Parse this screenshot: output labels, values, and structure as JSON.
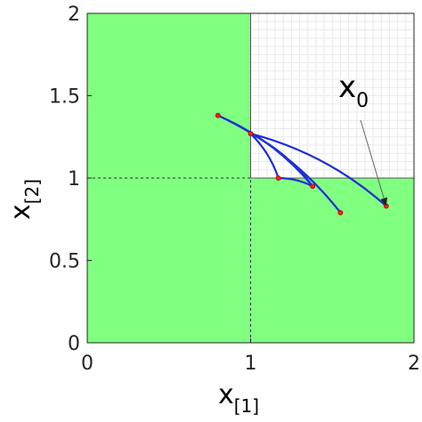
{
  "chart_data": {
    "type": "line",
    "xlim": [
      0,
      2
    ],
    "ylim": [
      0,
      2
    ],
    "xticks": [
      "0",
      "1",
      "2"
    ],
    "yticks": [
      "0",
      "0.5",
      "1",
      "1.5",
      "2"
    ],
    "xlabel": {
      "base": "x",
      "sub": "[1]"
    },
    "ylabel": {
      "base": "x",
      "sub": "[2]"
    },
    "colors": {
      "region": "#80ff80",
      "grid": "#e9e9e9",
      "trajectory": "#1f2fd6",
      "point": "#ff1a1a",
      "reference": "#333333"
    },
    "region_note": "green region = plane minus the quadrant x1>1, x2>1",
    "reference_lines": {
      "x": 1,
      "y": 1
    },
    "annotation": {
      "base": "x",
      "sub": "0",
      "target": [
        1.83,
        0.83
      ]
    },
    "trajectories": [
      {
        "points": [
          [
            1.83,
            0.83
          ],
          [
            1.0,
            1.27
          ],
          [
            1.38,
            0.95
          ],
          [
            0.8,
            1.38
          ],
          [
            1.55,
            0.79
          ]
        ]
      },
      {
        "points": [
          [
            1.0,
            1.27
          ],
          [
            1.17,
            1.0
          ],
          [
            1.38,
            0.95
          ]
        ]
      }
    ],
    "markers": [
      [
        1.83,
        0.83
      ],
      [
        1.0,
        1.27
      ],
      [
        1.38,
        0.95
      ],
      [
        0.8,
        1.38
      ],
      [
        1.55,
        0.79
      ],
      [
        1.17,
        1.0
      ]
    ]
  }
}
